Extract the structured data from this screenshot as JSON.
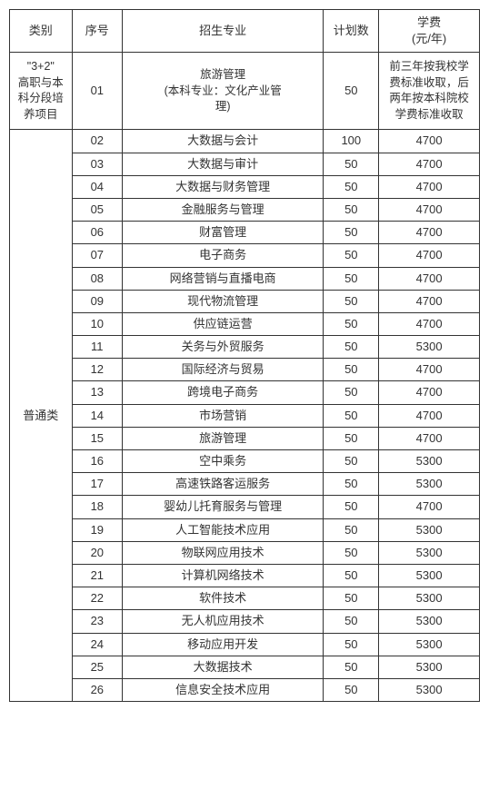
{
  "columns": [
    "类别",
    "序号",
    "招生专业",
    "计划数",
    "学费\n(元/年)"
  ],
  "section1": {
    "category": "\"3+2\"\n高职与本\n科分段培\n养项目",
    "rows": [
      {
        "index": "01",
        "major": "旅游管理\n(本科专业：文化产业管\n理)",
        "plan": "50",
        "tuition": "前三年按我校学\n费标准收取，后\n两年按本科院校\n学费标准收取"
      }
    ]
  },
  "section2": {
    "category": "普通类",
    "rows": [
      {
        "index": "02",
        "major": "大数据与会计",
        "plan": "100",
        "tuition": "4700"
      },
      {
        "index": "03",
        "major": "大数据与审计",
        "plan": "50",
        "tuition": "4700"
      },
      {
        "index": "04",
        "major": "大数据与财务管理",
        "plan": "50",
        "tuition": "4700"
      },
      {
        "index": "05",
        "major": "金融服务与管理",
        "plan": "50",
        "tuition": "4700"
      },
      {
        "index": "06",
        "major": "财富管理",
        "plan": "50",
        "tuition": "4700"
      },
      {
        "index": "07",
        "major": "电子商务",
        "plan": "50",
        "tuition": "4700"
      },
      {
        "index": "08",
        "major": "网络营销与直播电商",
        "plan": "50",
        "tuition": "4700"
      },
      {
        "index": "09",
        "major": "现代物流管理",
        "plan": "50",
        "tuition": "4700"
      },
      {
        "index": "10",
        "major": "供应链运营",
        "plan": "50",
        "tuition": "4700"
      },
      {
        "index": "11",
        "major": "关务与外贸服务",
        "plan": "50",
        "tuition": "5300"
      },
      {
        "index": "12",
        "major": "国际经济与贸易",
        "plan": "50",
        "tuition": "4700"
      },
      {
        "index": "13",
        "major": "跨境电子商务",
        "plan": "50",
        "tuition": "4700"
      },
      {
        "index": "14",
        "major": "市场营销",
        "plan": "50",
        "tuition": "4700"
      },
      {
        "index": "15",
        "major": "旅游管理",
        "plan": "50",
        "tuition": "4700"
      },
      {
        "index": "16",
        "major": "空中乘务",
        "plan": "50",
        "tuition": "5300"
      },
      {
        "index": "17",
        "major": "高速铁路客运服务",
        "plan": "50",
        "tuition": "5300"
      },
      {
        "index": "18",
        "major": "婴幼儿托育服务与管理",
        "plan": "50",
        "tuition": "4700"
      },
      {
        "index": "19",
        "major": "人工智能技术应用",
        "plan": "50",
        "tuition": "5300"
      },
      {
        "index": "20",
        "major": "物联网应用技术",
        "plan": "50",
        "tuition": "5300"
      },
      {
        "index": "21",
        "major": "计算机网络技术",
        "plan": "50",
        "tuition": "5300"
      },
      {
        "index": "22",
        "major": "软件技术",
        "plan": "50",
        "tuition": "5300"
      },
      {
        "index": "23",
        "major": "无人机应用技术",
        "plan": "50",
        "tuition": "5300"
      },
      {
        "index": "24",
        "major": "移动应用开发",
        "plan": "50",
        "tuition": "5300"
      },
      {
        "index": "25",
        "major": "大数据技术",
        "plan": "50",
        "tuition": "5300"
      },
      {
        "index": "26",
        "major": "信息安全技术应用",
        "plan": "50",
        "tuition": "5300"
      }
    ]
  },
  "style": {
    "border_color": "#333333",
    "text_color": "#333333",
    "background_color": "#ffffff",
    "font_size": 13,
    "font_family": "Microsoft YaHei"
  }
}
